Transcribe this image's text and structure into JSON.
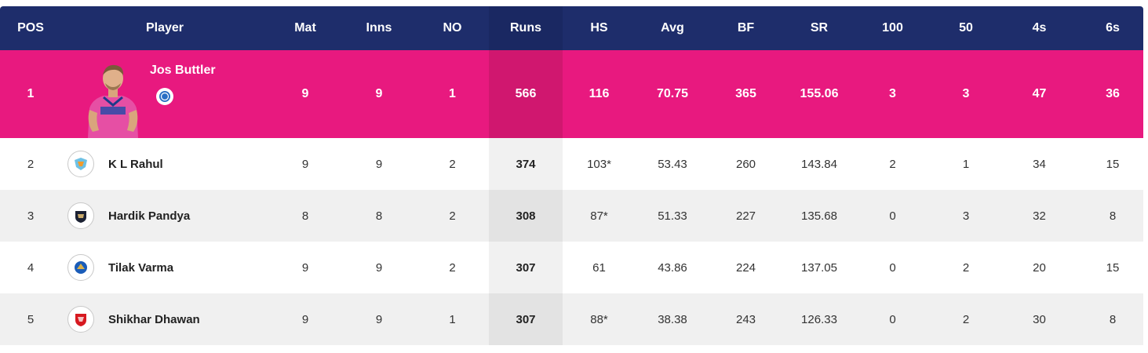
{
  "columns": [
    "POS",
    "Player",
    "Mat",
    "Inns",
    "NO",
    "Runs",
    "HS",
    "Avg",
    "BF",
    "SR",
    "100",
    "50",
    "4s",
    "6s"
  ],
  "colors": {
    "header_bg": "#1e2d6b",
    "leader_bg": "#e8197f",
    "row_alt_bg": "#f0f0f0"
  },
  "leader": {
    "pos": "1",
    "name": "Jos Buttler",
    "team_icon": "rr-badge-icon",
    "mat": "9",
    "inns": "9",
    "no": "1",
    "runs": "566",
    "hs": "116",
    "avg": "70.75",
    "bf": "365",
    "sr": "155.06",
    "hundreds": "3",
    "fifties": "3",
    "fours": "47",
    "sixes": "36"
  },
  "rows": [
    {
      "pos": "2",
      "name": "K L Rahul",
      "team_icon": "lsg-logo-icon",
      "mat": "9",
      "inns": "9",
      "no": "2",
      "runs": "374",
      "hs": "103*",
      "avg": "53.43",
      "bf": "260",
      "sr": "143.84",
      "hundreds": "2",
      "fifties": "1",
      "fours": "34",
      "sixes": "15"
    },
    {
      "pos": "3",
      "name": "Hardik Pandya",
      "team_icon": "gt-logo-icon",
      "mat": "8",
      "inns": "8",
      "no": "2",
      "runs": "308",
      "hs": "87*",
      "avg": "51.33",
      "bf": "227",
      "sr": "135.68",
      "hundreds": "0",
      "fifties": "3",
      "fours": "32",
      "sixes": "8"
    },
    {
      "pos": "4",
      "name": "Tilak Varma",
      "team_icon": "mi-logo-icon",
      "mat": "9",
      "inns": "9",
      "no": "2",
      "runs": "307",
      "hs": "61",
      "avg": "43.86",
      "bf": "224",
      "sr": "137.05",
      "hundreds": "0",
      "fifties": "2",
      "fours": "20",
      "sixes": "15"
    },
    {
      "pos": "5",
      "name": "Shikhar Dhawan",
      "team_icon": "pbks-logo-icon",
      "mat": "9",
      "inns": "9",
      "no": "1",
      "runs": "307",
      "hs": "88*",
      "avg": "38.38",
      "bf": "243",
      "sr": "126.33",
      "hundreds": "0",
      "fifties": "2",
      "fours": "30",
      "sixes": "8"
    }
  ]
}
